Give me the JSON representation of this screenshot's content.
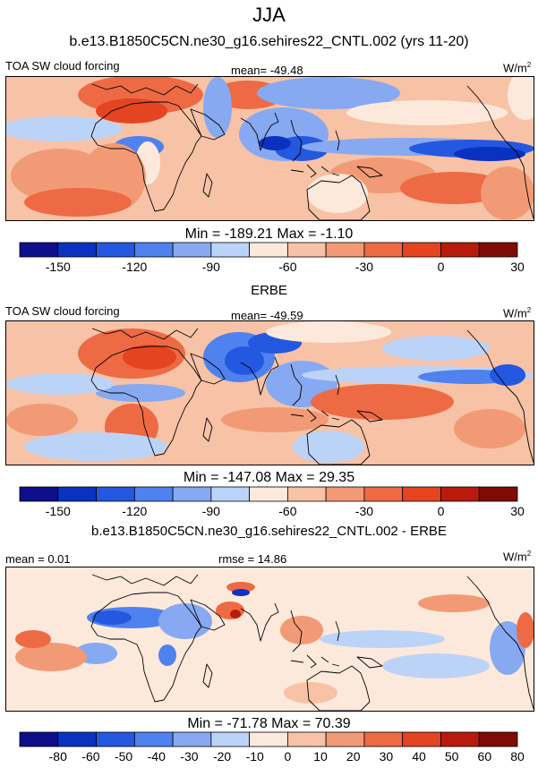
{
  "figure": {
    "season": "JJA",
    "case_title": "b.e13.B1850C5CN.ne30_g16.sehires22_CNTL.002 (yrs 11-20)",
    "diff_title": "b.e13.B1850C5CN.ne30_g16.sehires22_CNTL.002 - ERBE"
  },
  "colors": {
    "levels": [
      "#0d0f8b",
      "#0a32c0",
      "#2458e0",
      "#4f82ee",
      "#86a9f2",
      "#bcd3f8",
      "#fde9dc",
      "#f7c2a5",
      "#f29a76",
      "#ed6a45",
      "#e54420",
      "#b81a0c",
      "#7e0b05"
    ]
  },
  "chart_data": [
    {
      "type": "heatmap",
      "panel": "model",
      "title_left": "TOA SW cloud forcing",
      "mean_text": "mean= -49.48",
      "units": "W/m",
      "units_sup": "2",
      "min_max_text": "Min = -189.21 Max =  -1.10",
      "min": -189.21,
      "max": -1.1,
      "colorbar_ticks": [
        "-150",
        "-120",
        "-90",
        "-60",
        "-30",
        "0",
        "30"
      ]
    },
    {
      "type": "heatmap",
      "panel": "observations",
      "title_top": "ERBE",
      "title_left": "TOA SW cloud forcing",
      "mean_text": "mean= -49.59",
      "units": "W/m",
      "units_sup": "2",
      "min_max_text": "Min = -147.08 Max =  29.35",
      "min": -147.08,
      "max": 29.35,
      "colorbar_ticks": [
        "-150",
        "-120",
        "-90",
        "-60",
        "-30",
        "0",
        "30"
      ]
    },
    {
      "type": "heatmap",
      "panel": "difference",
      "mean_text": "mean =   0.01",
      "rmse_text": "rmse =  14.86",
      "units": "W/m",
      "units_sup": "2",
      "min_max_text": "Min = -71.78 Max =  70.39",
      "min": -71.78,
      "max": 70.39,
      "colorbar_ticks": [
        "-80",
        "-60",
        "-50",
        "-40",
        "-30",
        "-20",
        "-10",
        "0",
        "10",
        "20",
        "30",
        "40",
        "50",
        "60",
        "80"
      ]
    }
  ]
}
